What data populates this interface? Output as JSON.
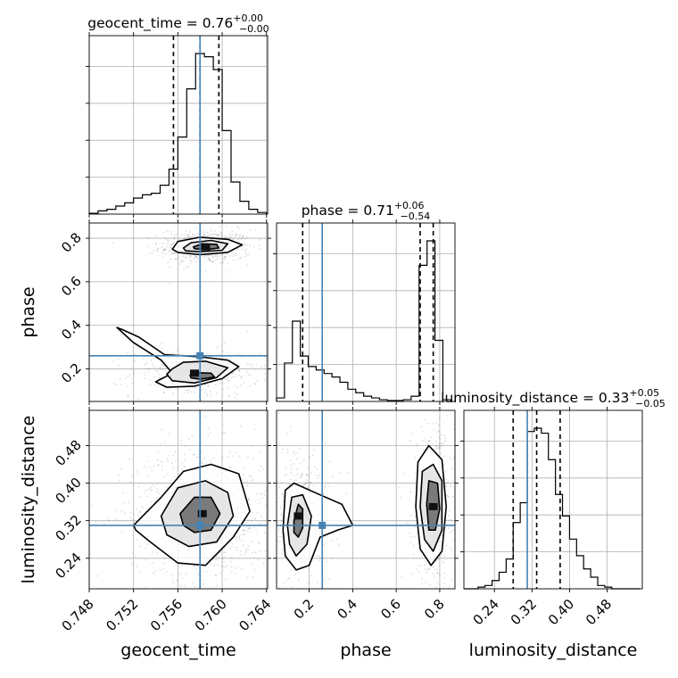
{
  "chart_data": {
    "type": "corner",
    "parameters": [
      "geocent_time",
      "phase",
      "luminosity_distance"
    ],
    "truths": {
      "geocent_time": 0.758,
      "phase": 0.26,
      "luminosity_distance": 0.31
    },
    "truth_color": "#4682b4",
    "axis_labels": {
      "x": [
        "geocent_time",
        "phase",
        "luminosity_distance"
      ],
      "y": [
        "phase",
        "luminosity_distance"
      ]
    },
    "ticks": {
      "geocent_time": {
        "values": [
          0.748,
          0.752,
          0.756,
          0.76,
          0.764
        ],
        "labels": [
          "0.748",
          "0.752",
          "0.756",
          "0.760",
          "0.764"
        ]
      },
      "phase": {
        "values": [
          0.2,
          0.4,
          0.6,
          0.8
        ],
        "labels": [
          "0.2",
          "0.4",
          "0.6",
          "0.8"
        ]
      },
      "luminosity_distance": {
        "values": [
          0.24,
          0.32,
          0.4,
          0.48
        ],
        "labels": [
          "0.24",
          "0.32",
          "0.40",
          "0.48"
        ]
      }
    },
    "ranges": {
      "geocent_time": [
        0.748,
        0.7641
      ],
      "phase": [
        0.05,
        0.87
      ],
      "luminosity_distance": [
        0.175,
        0.555
      ]
    },
    "marginals": [
      {
        "parameter": "geocent_time",
        "title": {
          "text": "geocent_time = 0.76",
          "plus": "+0.00",
          "minus": "−0.00"
        },
        "quantiles": [
          0.7556,
          0.758,
          0.7597
        ],
        "bin_edges": [
          0.748,
          0.7488,
          0.7496,
          0.7504,
          0.7512,
          0.752,
          0.7528,
          0.7536,
          0.7544,
          0.7552,
          0.756,
          0.7568,
          0.7576,
          0.7584,
          0.7592,
          0.76,
          0.7608,
          0.7616,
          0.7624,
          0.7632,
          0.764
        ],
        "density": [
          0.005,
          0.02,
          0.03,
          0.05,
          0.07,
          0.1,
          0.12,
          0.13,
          0.18,
          0.28,
          0.48,
          0.78,
          1.0,
          0.98,
          0.9,
          0.52,
          0.2,
          0.08,
          0.03,
          0.01
        ]
      },
      {
        "parameter": "phase",
        "title": {
          "text": "phase = 0.71",
          "plus": "+0.06",
          "minus": "−0.54"
        },
        "quantiles": [
          0.17,
          0.71,
          0.77
        ],
        "bin_edges": [
          0.05,
          0.0864,
          0.1228,
          0.1592,
          0.1956,
          0.232,
          0.2684,
          0.3048,
          0.3412,
          0.3776,
          0.414,
          0.4504,
          0.4868,
          0.5232,
          0.5596,
          0.596,
          0.6324,
          0.6688,
          0.7052,
          0.7416,
          0.778,
          0.8144,
          0.8508
        ],
        "density": [
          0.02,
          0.22,
          0.46,
          0.26,
          0.2,
          0.18,
          0.16,
          0.14,
          0.11,
          0.07,
          0.05,
          0.03,
          0.02,
          0.01,
          0.005,
          0.005,
          0.01,
          0.03,
          0.78,
          0.92,
          0.35,
          0.01
        ]
      },
      {
        "parameter": "luminosity_distance",
        "title": {
          "text": "luminosity_distance = 0.33",
          "plus": "+0.05",
          "minus": "−0.05"
        },
        "quantiles": [
          0.28,
          0.33,
          0.38
        ],
        "bin_edges": [
          0.175,
          0.19,
          0.205,
          0.22,
          0.235,
          0.25,
          0.265,
          0.28,
          0.295,
          0.31,
          0.325,
          0.34,
          0.355,
          0.37,
          0.385,
          0.4,
          0.415,
          0.43,
          0.445,
          0.46,
          0.475,
          0.49,
          0.505,
          0.52,
          0.535,
          0.55
        ],
        "density": [
          0.0,
          0.0,
          0.01,
          0.02,
          0.05,
          0.1,
          0.18,
          0.4,
          0.52,
          0.95,
          0.97,
          0.94,
          0.78,
          0.57,
          0.44,
          0.3,
          0.2,
          0.12,
          0.07,
          0.02,
          0.01,
          0.0,
          0.0,
          0.0,
          0.0
        ]
      }
    ],
    "joint": [
      {
        "x": "geocent_time",
        "y": "phase",
        "modes": [
          {
            "center": [
              0.7585,
              0.76
            ],
            "sigma": [
              0.0013,
              0.025
            ],
            "weight": 0.6
          },
          {
            "center": [
              0.7575,
              0.18
            ],
            "sigma": [
              0.0018,
              0.035
            ],
            "weight": 0.4
          }
        ],
        "contours": [
          [
            [
              0.7555,
              0.75
            ],
            [
              0.756,
              0.785
            ],
            [
              0.758,
              0.805
            ],
            [
              0.7605,
              0.795
            ],
            [
              0.7618,
              0.77
            ],
            [
              0.7605,
              0.735
            ],
            [
              0.758,
              0.725
            ],
            [
              0.756,
              0.735
            ]
          ],
          [
            [
              0.7565,
              0.755
            ],
            [
              0.7572,
              0.78
            ],
            [
              0.759,
              0.79
            ],
            [
              0.7605,
              0.775
            ],
            [
              0.76,
              0.745
            ],
            [
              0.758,
              0.738
            ],
            [
              0.7567,
              0.742
            ]
          ],
          [
            [
              0.7574,
              0.76
            ],
            [
              0.7582,
              0.775
            ],
            [
              0.7595,
              0.772
            ],
            [
              0.7597,
              0.755
            ],
            [
              0.7585,
              0.748
            ],
            [
              0.7575,
              0.752
            ]
          ],
          [
            [
              0.751,
              0.38
            ],
            [
              0.7525,
              0.345
            ],
            [
              0.7548,
              0.265
            ],
            [
              0.758,
              0.255
            ],
            [
              0.7605,
              0.24
            ],
            [
              0.7615,
              0.21
            ],
            [
              0.76,
              0.155
            ],
            [
              0.7575,
              0.12
            ],
            [
              0.755,
              0.115
            ],
            [
              0.754,
              0.14
            ],
            [
              0.7555,
              0.18
            ],
            [
              0.7545,
              0.24
            ],
            [
              0.752,
              0.32
            ],
            [
              0.7505,
              0.39
            ]
          ],
          [
            [
              0.7555,
              0.2
            ],
            [
              0.7565,
              0.23
            ],
            [
              0.7585,
              0.235
            ],
            [
              0.7605,
              0.205
            ],
            [
              0.7595,
              0.16
            ],
            [
              0.7575,
              0.135
            ],
            [
              0.7555,
              0.145
            ],
            [
              0.755,
              0.175
            ]
          ],
          [
            [
              0.7571,
              0.17
            ],
            [
              0.7577,
              0.182
            ],
            [
              0.759,
              0.18
            ],
            [
              0.7593,
              0.162
            ],
            [
              0.758,
              0.152
            ],
            [
              0.7572,
              0.158
            ]
          ]
        ]
      },
      {
        "x": "geocent_time",
        "y": "luminosity_distance",
        "modes": [
          {
            "center": [
              0.7582,
              0.335
            ],
            "sigma": [
              0.002,
              0.045
            ],
            "weight": 1.0
          }
        ],
        "contours": [
          [
            [
              0.752,
              0.31
            ],
            [
              0.7545,
              0.37
            ],
            [
              0.7565,
              0.425
            ],
            [
              0.759,
              0.44
            ],
            [
              0.7615,
              0.42
            ],
            [
              0.7625,
              0.34
            ],
            [
              0.761,
              0.285
            ],
            [
              0.7585,
              0.225
            ],
            [
              0.756,
              0.23
            ],
            [
              0.7535,
              0.275
            ],
            [
              0.7522,
              0.3
            ]
          ],
          [
            [
              0.7545,
              0.33
            ],
            [
              0.756,
              0.39
            ],
            [
              0.7585,
              0.405
            ],
            [
              0.7605,
              0.38
            ],
            [
              0.761,
              0.33
            ],
            [
              0.7595,
              0.275
            ],
            [
              0.757,
              0.265
            ],
            [
              0.755,
              0.29
            ]
          ],
          [
            [
              0.7562,
              0.335
            ],
            [
              0.7575,
              0.37
            ],
            [
              0.759,
              0.37
            ],
            [
              0.7598,
              0.335
            ],
            [
              0.759,
              0.3
            ],
            [
              0.7575,
              0.295
            ],
            [
              0.7565,
              0.31
            ]
          ]
        ]
      },
      {
        "x": "phase",
        "y": "luminosity_distance",
        "modes": [
          {
            "center": [
              0.15,
              0.33
            ],
            "sigma": [
              0.05,
              0.05
            ],
            "weight": 0.4
          },
          {
            "center": [
              0.77,
              0.35
            ],
            "sigma": [
              0.03,
              0.055
            ],
            "weight": 0.6
          }
        ],
        "contours": [
          [
            [
              0.08,
              0.3
            ],
            [
              0.09,
              0.385
            ],
            [
              0.13,
              0.4
            ],
            [
              0.25,
              0.375
            ],
            [
              0.35,
              0.355
            ],
            [
              0.4,
              0.31
            ],
            [
              0.33,
              0.3
            ],
            [
              0.25,
              0.285
            ],
            [
              0.2,
              0.225
            ],
            [
              0.14,
              0.215
            ],
            [
              0.09,
              0.245
            ]
          ],
          [
            [
              0.1,
              0.31
            ],
            [
              0.12,
              0.37
            ],
            [
              0.17,
              0.375
            ],
            [
              0.21,
              0.33
            ],
            [
              0.19,
              0.27
            ],
            [
              0.14,
              0.245
            ],
            [
              0.11,
              0.27
            ]
          ],
          [
            [
              0.13,
              0.32
            ],
            [
              0.15,
              0.355
            ],
            [
              0.17,
              0.345
            ],
            [
              0.17,
              0.305
            ],
            [
              0.15,
              0.285
            ],
            [
              0.13,
              0.295
            ]
          ],
          [
            [
              0.69,
              0.35
            ],
            [
              0.7,
              0.445
            ],
            [
              0.75,
              0.48
            ],
            [
              0.81,
              0.45
            ],
            [
              0.83,
              0.35
            ],
            [
              0.81,
              0.255
            ],
            [
              0.76,
              0.225
            ],
            [
              0.71,
              0.26
            ]
          ],
          [
            [
              0.71,
              0.35
            ],
            [
              0.72,
              0.425
            ],
            [
              0.77,
              0.44
            ],
            [
              0.81,
              0.405
            ],
            [
              0.81,
              0.3
            ],
            [
              0.77,
              0.255
            ],
            [
              0.73,
              0.28
            ]
          ],
          [
            [
              0.74,
              0.355
            ],
            [
              0.75,
              0.405
            ],
            [
              0.79,
              0.4
            ],
            [
              0.8,
              0.345
            ],
            [
              0.78,
              0.3
            ],
            [
              0.75,
              0.3
            ]
          ]
        ]
      }
    ]
  }
}
